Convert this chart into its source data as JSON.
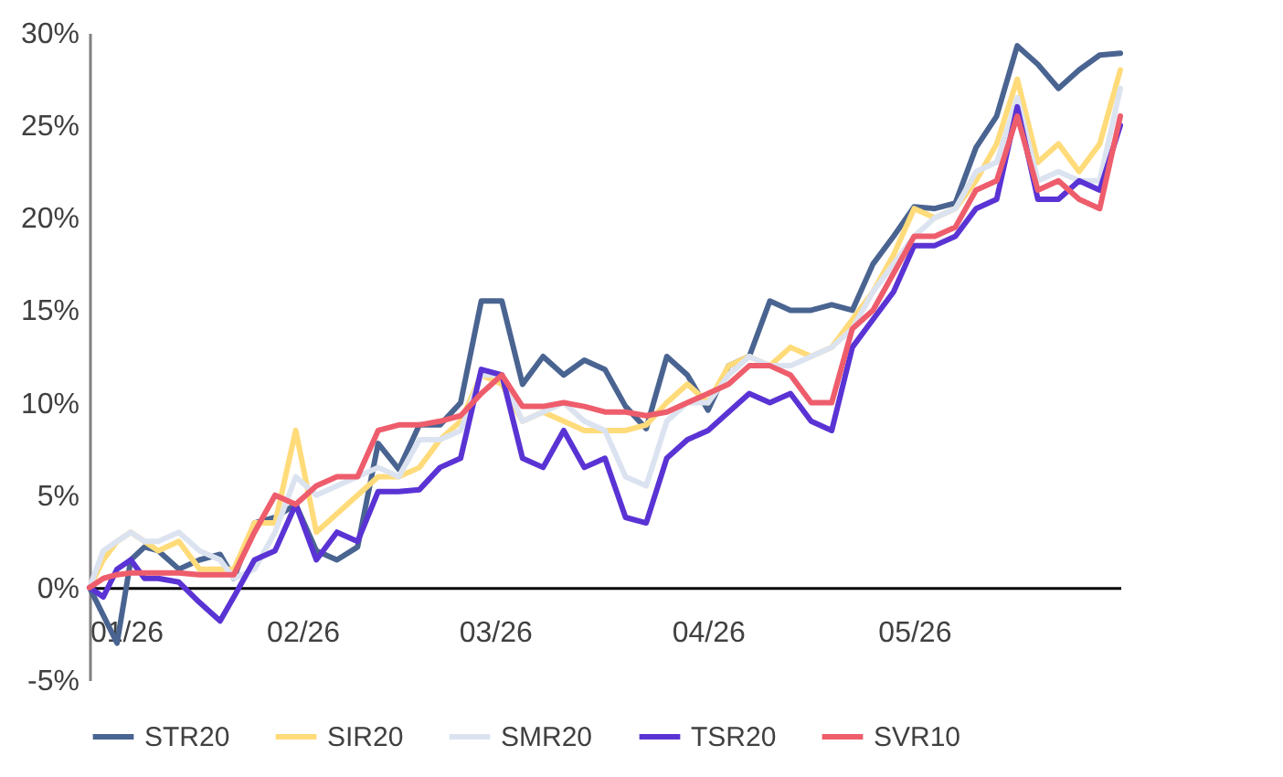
{
  "chart_data": {
    "type": "line",
    "x": [
      "2026-01-01",
      "2026-01-03",
      "2026-01-05",
      "2026-01-07",
      "2026-01-09",
      "2026-01-11",
      "2026-01-14",
      "2026-01-17",
      "2026-01-20",
      "2026-01-22",
      "2026-01-25",
      "2026-01-28",
      "2026-01-31",
      "2026-02-03",
      "2026-02-06",
      "2026-02-09",
      "2026-02-12",
      "2026-02-15",
      "2026-02-18",
      "2026-02-21",
      "2026-02-24",
      "2026-02-27",
      "2026-03-02",
      "2026-03-05",
      "2026-03-08",
      "2026-03-11",
      "2026-03-14",
      "2026-03-17",
      "2026-03-20",
      "2026-03-23",
      "2026-03-26",
      "2026-03-29",
      "2026-04-01",
      "2026-04-04",
      "2026-04-07",
      "2026-04-10",
      "2026-04-13",
      "2026-04-16",
      "2026-04-19",
      "2026-04-22",
      "2026-04-25",
      "2026-04-28",
      "2026-05-01",
      "2026-05-04",
      "2026-05-07",
      "2026-05-10",
      "2026-05-13",
      "2026-05-16",
      "2026-05-19",
      "2026-05-22",
      "2026-05-25",
      "2026-05-28",
      "2026-05-31"
    ],
    "series": [
      {
        "name": "STR20",
        "color": "#4a6491",
        "values": [
          0,
          -1.5,
          -3,
          1.5,
          2.2,
          2,
          1,
          1.5,
          1.8,
          0.5,
          3.5,
          3.8,
          4.5,
          2,
          1.5,
          2.2,
          7.8,
          6.4,
          8.8,
          8.8,
          10,
          15.5,
          15.5,
          11,
          12.5,
          11.5,
          12.3,
          11.8,
          9.8,
          8.6,
          12.5,
          11.5,
          9.6,
          12,
          12.5,
          15.5,
          15,
          15,
          15.3,
          15,
          17.5,
          19,
          20.6,
          20.5,
          20.8,
          23.8,
          25.5,
          29.3,
          28.3,
          27,
          28,
          28.8,
          28.9
        ]
      },
      {
        "name": "SIR20",
        "color": "#ffdb7a",
        "values": [
          0,
          1.5,
          2.5,
          3,
          2.5,
          2,
          2.5,
          1,
          1,
          1,
          3.5,
          3.5,
          8.5,
          3,
          4,
          5,
          6,
          6,
          6.5,
          8,
          9,
          11.5,
          11,
          9,
          9.5,
          9,
          8.5,
          8.5,
          8.5,
          8.8,
          10,
          11,
          10,
          12,
          12.5,
          12,
          13,
          12.5,
          13,
          14.5,
          16,
          18,
          20.5,
          20,
          20.5,
          22,
          24,
          27.5,
          23,
          24,
          22.5,
          24,
          28
        ]
      },
      {
        "name": "SMR20",
        "color": "#dce3f0",
        "values": [
          0,
          2,
          2.5,
          3,
          2.5,
          2.5,
          3,
          2,
          1.5,
          0.5,
          1,
          3,
          6,
          5,
          5.5,
          6,
          6.5,
          6,
          8,
          8,
          8.5,
          11.5,
          11.5,
          9,
          9.5,
          10,
          9,
          8.5,
          6,
          5.5,
          9,
          10,
          10,
          11.5,
          12.5,
          12,
          12,
          12.5,
          13,
          14,
          16,
          17.5,
          19,
          20,
          20.5,
          22.5,
          23,
          26.5,
          22,
          22.5,
          22,
          22,
          27
        ]
      },
      {
        "name": "TSR20",
        "color": "#5a33d4",
        "values": [
          0,
          -0.5,
          1,
          1.5,
          0.5,
          0.5,
          0.3,
          -0.8,
          -1.8,
          -0.5,
          1.5,
          2,
          4.5,
          1.5,
          3,
          2.5,
          5.2,
          5.2,
          5.3,
          6.5,
          7,
          11.8,
          11.5,
          7,
          6.5,
          8.5,
          6.5,
          7,
          3.8,
          3.5,
          7,
          8,
          8.5,
          9.5,
          10.5,
          10,
          10.5,
          9,
          8.5,
          13,
          14.5,
          16,
          18.5,
          18.5,
          19,
          20.5,
          21,
          26,
          21,
          21,
          22,
          21.5,
          25
        ]
      },
      {
        "name": "SVR10",
        "color": "#ee5d6c",
        "values": [
          0,
          0.5,
          0.7,
          0.8,
          0.8,
          0.8,
          0.8,
          0.7,
          0.7,
          0.7,
          3,
          5,
          4.5,
          5.5,
          6,
          6,
          8.5,
          8.8,
          8.8,
          9,
          9.3,
          10.5,
          11.5,
          9.8,
          9.8,
          10,
          9.8,
          9.5,
          9.5,
          9.3,
          9.5,
          10,
          10.5,
          11,
          12,
          12,
          11.5,
          10,
          10,
          14,
          15,
          17,
          19,
          19,
          19.5,
          21.5,
          22,
          25.5,
          21.5,
          22,
          21,
          20.5,
          25.5
        ]
      }
    ],
    "xlim": [
      "2026-01-01",
      "2026-05-31"
    ],
    "xticks": [
      {
        "value": "2026-01-01",
        "label": "01/26"
      },
      {
        "value": "2026-02-01",
        "label": "02/26"
      },
      {
        "value": "2026-03-01",
        "label": "03/26"
      },
      {
        "value": "2026-04-01",
        "label": "04/26"
      },
      {
        "value": "2026-05-01",
        "label": "05/26"
      }
    ],
    "ylim": [
      -5,
      30
    ],
    "yticks": [
      {
        "value": -5,
        "label": "-5%"
      },
      {
        "value": 0,
        "label": "0%"
      },
      {
        "value": 5,
        "label": "5%"
      },
      {
        "value": 10,
        "label": "10%"
      },
      {
        "value": 15,
        "label": "15%"
      },
      {
        "value": 20,
        "label": "20%"
      },
      {
        "value": 25,
        "label": "25%"
      },
      {
        "value": 30,
        "label": "30%"
      }
    ],
    "grid": false,
    "legend": "bottom",
    "marker": "none",
    "line_style": "solid"
  }
}
